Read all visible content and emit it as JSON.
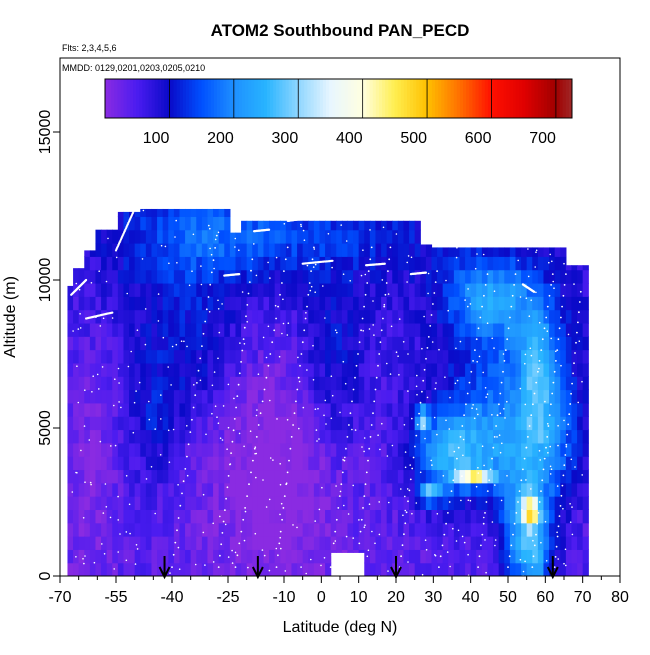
{
  "chart_data": {
    "type": "heatmap",
    "title": "ATOM2 Southbound PAN_PECD",
    "subtitle_flights": "Flts: 2,3,4,5,6",
    "subtitle_dates": "MMDD: 0129,0201,0203,0205,0210",
    "xlabel": "Latitude (deg N)",
    "ylabel": "Altitude (m)",
    "xlim": [
      -70,
      80
    ],
    "ylim": [
      0,
      17500
    ],
    "x_ticks": [
      -70,
      -55,
      -40,
      -25,
      -10,
      0,
      10,
      20,
      30,
      40,
      50,
      60,
      70,
      80
    ],
    "x_minor_ticks": [
      -65,
      -60,
      -50,
      -45,
      -35,
      -30,
      -20,
      -15,
      -5,
      5,
      15,
      25,
      35,
      45,
      55,
      65,
      75
    ],
    "y_ticks": [
      0,
      5000,
      10000,
      15000
    ],
    "colorbar": {
      "ticks": [
        100,
        200,
        300,
        400,
        500,
        600,
        700
      ],
      "range": [
        0,
        725
      ],
      "stops": [
        {
          "v": 0,
          "c": "#8a2be2"
        },
        {
          "v": 50,
          "c": "#4b1cf0"
        },
        {
          "v": 100,
          "c": "#0a0ac8"
        },
        {
          "v": 150,
          "c": "#0050ff"
        },
        {
          "v": 200,
          "c": "#1e90ff"
        },
        {
          "v": 250,
          "c": "#28b4ff"
        },
        {
          "v": 300,
          "c": "#8fd6ff"
        },
        {
          "v": 350,
          "c": "#e8f6ff"
        },
        {
          "v": 400,
          "c": "#ffffe0"
        },
        {
          "v": 450,
          "c": "#ffee50"
        },
        {
          "v": 500,
          "c": "#ffc000"
        },
        {
          "v": 550,
          "c": "#ff7000"
        },
        {
          "v": 600,
          "c": "#ff1000"
        },
        {
          "v": 650,
          "c": "#e00000"
        },
        {
          "v": 700,
          "c": "#a00000"
        },
        {
          "v": 725,
          "c": "#a02828"
        }
      ]
    },
    "profile_latitudes": [
      -42,
      -17,
      20,
      62
    ],
    "grid": false
  }
}
